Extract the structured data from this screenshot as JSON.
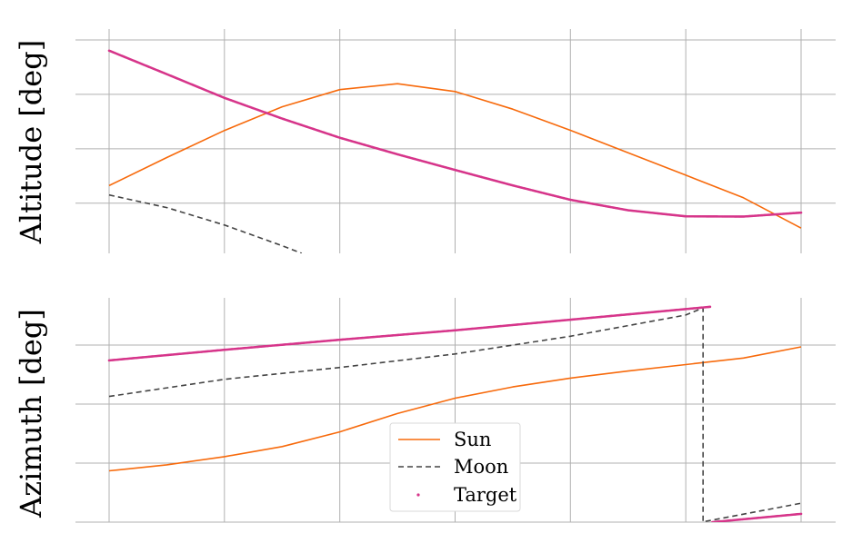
{
  "chart_data": [
    {
      "type": "line",
      "ylabel": "Altitude [deg]",
      "xlabel": "",
      "grid": true,
      "xlim": [
        0,
        6.3
      ],
      "ylim": [
        -23,
        80
      ],
      "x_grid_values": [
        0,
        1,
        2,
        3,
        4,
        5,
        6
      ],
      "y_grid_values": [
        0,
        25,
        50,
        75
      ],
      "series": [
        {
          "name": "Sun",
          "style": "solid",
          "color": "#f76a0c",
          "x": [
            0,
            0.5,
            1,
            1.5,
            2,
            2.5,
            3,
            3.5,
            4,
            4.5,
            5,
            5.5,
            6
          ],
          "y": [
            8.1,
            21,
            33.4,
            44.3,
            52.2,
            54.9,
            51.3,
            43.2,
            33.5,
            23.2,
            12.9,
            2.5,
            -11.4
          ]
        },
        {
          "name": "Moon",
          "style": "dashed",
          "color": "#444444",
          "x": [
            0,
            0.5,
            1,
            1.5,
            1.67
          ],
          "y": [
            3.8,
            -2,
            -10,
            -19.5,
            -23
          ]
        },
        {
          "name": "Target",
          "style": "markers",
          "color": "#d6358a",
          "x": [
            0,
            0.5,
            1,
            1.5,
            2,
            2.5,
            3,
            3.5,
            4,
            4.5,
            5,
            5.5,
            6
          ],
          "y": [
            70.1,
            59.3,
            48.4,
            38.9,
            30.1,
            22.5,
            15.3,
            8.2,
            1.6,
            -3.2,
            -6,
            -6.1,
            -4.3
          ]
        }
      ]
    },
    {
      "type": "line",
      "ylabel": "Azimuth [deg]",
      "xlabel": "",
      "grid": true,
      "xlim": [
        0,
        6.3
      ],
      "ylim": [
        0,
        380
      ],
      "x_grid_values": [
        0,
        1,
        2,
        3,
        4,
        5,
        6
      ],
      "y_grid_values": [
        0,
        100,
        200,
        300
      ],
      "series": [
        {
          "name": "Sun",
          "style": "solid",
          "color": "#f76a0c",
          "x": [
            0,
            0.5,
            1,
            1.5,
            2,
            2.5,
            3,
            3.5,
            4,
            4.5,
            5,
            5.5,
            6
          ],
          "y": [
            87,
            97,
            111,
            128,
            153,
            184,
            210,
            229,
            244,
            256,
            267,
            278,
            297
          ]
        },
        {
          "name": "Moon",
          "style": "dashed",
          "color": "#444444",
          "x": [
            0,
            1,
            2,
            3,
            4,
            5,
            5.15,
            5.15,
            5.16,
            6
          ],
          "y": [
            213,
            242,
            262,
            285,
            315,
            351,
            363,
            0,
            1,
            32
          ]
        },
        {
          "name": "Target",
          "style": "markers",
          "color": "#d6358a",
          "x": [
            0,
            1,
            2,
            3,
            4,
            5,
            5.22,
            5.23,
            6
          ],
          "y": [
            274,
            292,
            309,
            325,
            343,
            361,
            365,
            0,
            14
          ]
        }
      ],
      "legend": {
        "placement": "lower-center",
        "entries": [
          "Sun",
          "Moon",
          "Target"
        ]
      }
    }
  ]
}
